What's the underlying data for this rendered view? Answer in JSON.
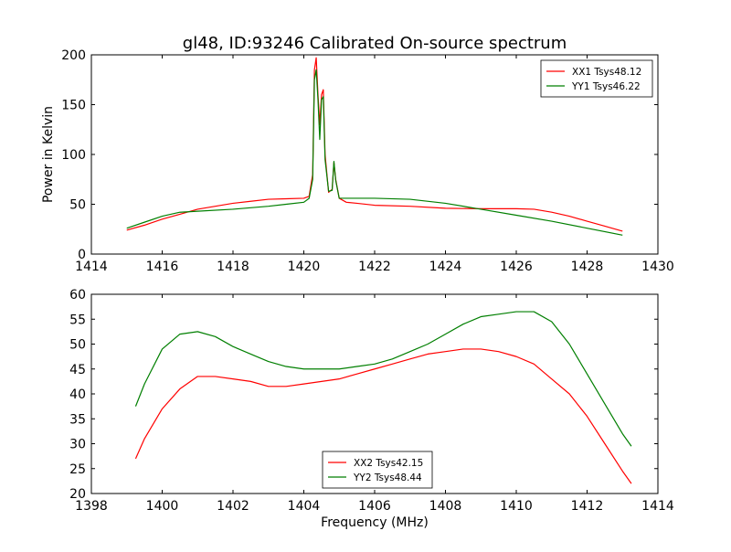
{
  "figure": {
    "title": "gl48, ID:93246 Calibrated On-source spectrum",
    "ylabel": "Power in Kelvin",
    "xlabel": "Frequency (MHz)"
  },
  "colors": {
    "red": "#ff0000",
    "green": "#007f00"
  },
  "chart_data": [
    {
      "type": "line",
      "xlim": [
        1414,
        1430
      ],
      "ylim": [
        0,
        200
      ],
      "xticks": [
        1414,
        1416,
        1418,
        1420,
        1422,
        1424,
        1426,
        1428,
        1430
      ],
      "yticks": [
        0,
        50,
        100,
        150,
        200
      ],
      "legend_position": "top-right",
      "series": [
        {
          "name": "XX1 Tsys48.12",
          "color": "#ff0000",
          "x": [
            1415,
            1415.5,
            1416,
            1416.5,
            1417,
            1417.5,
            1418,
            1418.5,
            1419,
            1419.5,
            1420,
            1420.15,
            1420.25,
            1420.3,
            1420.35,
            1420.4,
            1420.45,
            1420.5,
            1420.55,
            1420.6,
            1420.7,
            1420.8,
            1420.85,
            1420.9,
            1421,
            1421.2,
            1421.5,
            1422,
            1423,
            1424,
            1425,
            1426,
            1426.5,
            1427,
            1427.5,
            1428,
            1428.5,
            1429
          ],
          "y": [
            24,
            29,
            35,
            40,
            45,
            48,
            51,
            53,
            55,
            55.5,
            56,
            58,
            80,
            185,
            197,
            160,
            130,
            160,
            165,
            100,
            62,
            65,
            92,
            75,
            56,
            52,
            51,
            49,
            48,
            46,
            45.5,
            45.5,
            45,
            42,
            38,
            33,
            28,
            23
          ]
        },
        {
          "name": "YY1 Tsys46.22",
          "color": "#007f00",
          "x": [
            1415,
            1415.5,
            1416,
            1416.5,
            1417,
            1418,
            1419,
            1419.5,
            1420,
            1420.15,
            1420.25,
            1420.3,
            1420.35,
            1420.4,
            1420.45,
            1420.5,
            1420.55,
            1420.6,
            1420.7,
            1420.8,
            1420.85,
            1420.9,
            1421,
            1421.5,
            1422,
            1423,
            1424,
            1425,
            1426,
            1427,
            1428,
            1429
          ],
          "y": [
            26,
            32,
            38,
            42,
            43,
            45,
            48,
            50,
            52,
            56,
            75,
            175,
            185,
            155,
            115,
            155,
            158,
            95,
            63,
            64,
            93,
            74,
            56,
            56,
            56,
            55,
            51,
            45,
            39,
            33,
            26,
            19
          ]
        }
      ]
    },
    {
      "type": "line",
      "xlim": [
        1398,
        1414
      ],
      "ylim": [
        20,
        60
      ],
      "xticks": [
        1398,
        1400,
        1402,
        1404,
        1406,
        1408,
        1410,
        1412,
        1414
      ],
      "yticks": [
        20,
        25,
        30,
        35,
        40,
        45,
        50,
        55,
        60
      ],
      "legend_position": "bottom-center",
      "series": [
        {
          "name": "XX2 Tsys42.15",
          "color": "#ff0000",
          "x": [
            1399.25,
            1399.5,
            1400,
            1400.5,
            1401,
            1401.5,
            1402,
            1402.5,
            1403,
            1403.5,
            1404,
            1404.5,
            1405,
            1405.5,
            1406,
            1406.5,
            1407,
            1407.5,
            1408,
            1408.5,
            1409,
            1409.5,
            1410,
            1410.5,
            1411,
            1411.5,
            1412,
            1412.5,
            1413,
            1413.25
          ],
          "y": [
            27,
            31,
            37,
            41,
            43.5,
            43.5,
            43,
            42.5,
            41.5,
            41.5,
            42,
            42.5,
            43,
            44,
            45,
            46,
            47,
            48,
            48.5,
            49,
            49,
            48.5,
            47.5,
            46,
            43,
            40,
            35.5,
            30,
            24.5,
            22
          ]
        },
        {
          "name": "YY2 Tsys48.44",
          "color": "#007f00",
          "x": [
            1399.25,
            1399.5,
            1400,
            1400.5,
            1401,
            1401.5,
            1402,
            1402.5,
            1403,
            1403.5,
            1404,
            1404.5,
            1405,
            1405.5,
            1406,
            1406.5,
            1407,
            1407.5,
            1408,
            1408.5,
            1409,
            1409.5,
            1410,
            1410.5,
            1411,
            1411.5,
            1412,
            1412.5,
            1413,
            1413.25
          ],
          "y": [
            37.5,
            42,
            49,
            52,
            52.5,
            51.5,
            49.5,
            48,
            46.5,
            45.5,
            45,
            45,
            45,
            45.5,
            46,
            47,
            48.5,
            50,
            52,
            54,
            55.5,
            56,
            56.5,
            56.5,
            54.5,
            50,
            44,
            38,
            32,
            29.5
          ]
        }
      ]
    }
  ]
}
